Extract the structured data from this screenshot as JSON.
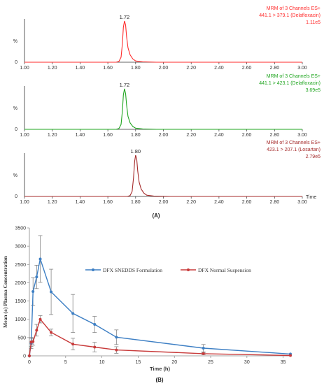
{
  "panel_a_label": "(A)",
  "panel_b_label": "(B)",
  "chart_data": [
    {
      "type": "line",
      "panel": "A1",
      "ylabel": "%",
      "y_zero_label": "0",
      "peak_label": "1.72",
      "info_lines": [
        "MRM of 3 Channels ES+",
        "441.1 > 379.1 (Delafloxacin)",
        "1.11e5"
      ],
      "color": "#ff2b2b",
      "xlim": [
        1.0,
        3.0
      ],
      "xticks": [
        "1.00",
        "1.20",
        "1.40",
        "1.60",
        "1.80",
        "2.00",
        "2.20",
        "2.40",
        "2.60",
        "2.80",
        "3.00"
      ],
      "peak": {
        "x": 1.72,
        "height": 1.0
      },
      "trace": [
        [
          1.0,
          0
        ],
        [
          1.66,
          0
        ],
        [
          1.68,
          0.02
        ],
        [
          1.695,
          0.12
        ],
        [
          1.705,
          0.45
        ],
        [
          1.712,
          0.85
        ],
        [
          1.72,
          1.0
        ],
        [
          1.728,
          0.9
        ],
        [
          1.735,
          0.62
        ],
        [
          1.745,
          0.35
        ],
        [
          1.76,
          0.18
        ],
        [
          1.78,
          0.08
        ],
        [
          1.8,
          0.03
        ],
        [
          1.85,
          0.01
        ],
        [
          1.95,
          0
        ],
        [
          3.0,
          0
        ]
      ]
    },
    {
      "type": "line",
      "panel": "A2",
      "ylabel": "%",
      "y_zero_label": "0",
      "peak_label": "1.72",
      "info_lines": [
        "MRM of 3 Channels ES+",
        "441.1 > 423.1 (Delafloxacin)",
        "3.69e5"
      ],
      "color": "#1fa51f",
      "xlim": [
        1.0,
        3.0
      ],
      "xticks": [
        "1.00",
        "1.20",
        "1.40",
        "1.60",
        "1.80",
        "2.00",
        "2.20",
        "2.40",
        "2.60",
        "2.80",
        "3.00"
      ],
      "peak": {
        "x": 1.72,
        "height": 1.0
      },
      "trace": [
        [
          1.0,
          0
        ],
        [
          1.66,
          0
        ],
        [
          1.68,
          0.02
        ],
        [
          1.695,
          0.12
        ],
        [
          1.705,
          0.45
        ],
        [
          1.712,
          0.85
        ],
        [
          1.72,
          1.0
        ],
        [
          1.728,
          0.88
        ],
        [
          1.735,
          0.6
        ],
        [
          1.745,
          0.32
        ],
        [
          1.76,
          0.16
        ],
        [
          1.78,
          0.07
        ],
        [
          1.8,
          0.03
        ],
        [
          1.85,
          0.01
        ],
        [
          1.95,
          0
        ],
        [
          3.0,
          0
        ]
      ]
    },
    {
      "type": "line",
      "panel": "A3",
      "ylabel": "%",
      "y_zero_label": "0",
      "peak_label": "1.80",
      "info_lines": [
        "MRM of 3 Channels ES+",
        "423.1 > 207.1 (Losartan)",
        "2.79e5"
      ],
      "color": "#a52a2a",
      "xlim": [
        1.0,
        3.0
      ],
      "xlabel": "Time",
      "xticks": [
        "1.00",
        "1.20",
        "1.40",
        "1.60",
        "1.80",
        "2.00",
        "2.20",
        "2.40",
        "2.60",
        "2.80",
        "3.00"
      ],
      "peak": {
        "x": 1.8,
        "height": 1.0
      },
      "trace": [
        [
          1.0,
          0
        ],
        [
          1.74,
          0
        ],
        [
          1.76,
          0.02
        ],
        [
          1.775,
          0.12
        ],
        [
          1.785,
          0.45
        ],
        [
          1.793,
          0.85
        ],
        [
          1.8,
          1.0
        ],
        [
          1.808,
          0.9
        ],
        [
          1.815,
          0.62
        ],
        [
          1.825,
          0.35
        ],
        [
          1.84,
          0.18
        ],
        [
          1.86,
          0.08
        ],
        [
          1.88,
          0.03
        ],
        [
          1.93,
          0.01
        ],
        [
          2.05,
          0
        ],
        [
          3.0,
          0
        ]
      ]
    },
    {
      "type": "line",
      "panel": "B",
      "xlabel": "Time (h)",
      "ylabel": "Mean (±) Plasma Concentration",
      "xlim": [
        0,
        36
      ],
      "ylim": [
        0,
        3500
      ],
      "xticks": [
        0,
        5,
        10,
        15,
        20,
        25,
        30,
        35
      ],
      "yticks": [
        0,
        500,
        1000,
        1500,
        2000,
        2500,
        3000,
        3500
      ],
      "legend_position": "upper-right",
      "series": [
        {
          "name": "DFX SNEDDS Formulation",
          "color": "#3d7fc4",
          "points": [
            {
              "x": 0,
              "y": 0,
              "err": 0
            },
            {
              "x": 0.25,
              "y": 340,
              "err": 140
            },
            {
              "x": 0.5,
              "y": 1760,
              "err": 380
            },
            {
              "x": 1,
              "y": 2160,
              "err": 320
            },
            {
              "x": 1.5,
              "y": 2650,
              "err": 640
            },
            {
              "x": 3,
              "y": 1750,
              "err": 620
            },
            {
              "x": 6,
              "y": 1160,
              "err": 520
            },
            {
              "x": 9,
              "y": 860,
              "err": 220
            },
            {
              "x": 12,
              "y": 510,
              "err": 200
            },
            {
              "x": 24,
              "y": 210,
              "err": 100
            },
            {
              "x": 36,
              "y": 50,
              "err": 0
            }
          ]
        },
        {
          "name": "DFX Normal Suspension",
          "color": "#c83a3a",
          "points": [
            {
              "x": 0,
              "y": 0,
              "err": 0
            },
            {
              "x": 0.25,
              "y": 380,
              "err": 120
            },
            {
              "x": 0.5,
              "y": 390,
              "err": 100
            },
            {
              "x": 1,
              "y": 700,
              "err": 160
            },
            {
              "x": 1.5,
              "y": 1000,
              "err": 100
            },
            {
              "x": 3,
              "y": 640,
              "err": 90
            },
            {
              "x": 6,
              "y": 320,
              "err": 160
            },
            {
              "x": 9,
              "y": 240,
              "err": 130
            },
            {
              "x": 12,
              "y": 160,
              "err": 90
            },
            {
              "x": 24,
              "y": 60,
              "err": 30
            },
            {
              "x": 36,
              "y": 10,
              "err": 0
            }
          ]
        }
      ]
    }
  ]
}
